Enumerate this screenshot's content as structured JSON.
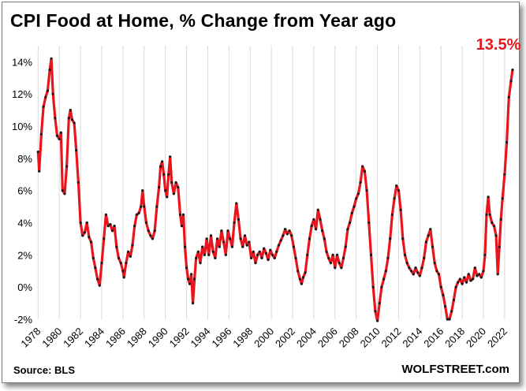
{
  "chart_data": {
    "type": "line",
    "title": "CPI Food at Home, % Change from Year ago",
    "source": "Source: BLS",
    "brand": "WOLFSTREET.com",
    "annotation": "13.5%",
    "xlim": [
      1977.9,
      2022.9
    ],
    "ylim": [
      -2,
      15
    ],
    "y_ticks": [
      -2,
      0,
      2,
      4,
      6,
      8,
      10,
      12,
      14
    ],
    "y_tick_labels": [
      "-2%",
      "0%",
      "2%",
      "4%",
      "6%",
      "8%",
      "10%",
      "12%",
      "14%"
    ],
    "x_ticks": [
      1978,
      1980,
      1982,
      1984,
      1986,
      1988,
      1990,
      1992,
      1994,
      1996,
      1998,
      2000,
      2002,
      2004,
      2006,
      2008,
      2010,
      2012,
      2014,
      2016,
      2018,
      2020,
      2022
    ],
    "x_tick_labels": [
      "1978",
      "1980",
      "1982",
      "1984",
      "1986",
      "1988",
      "1990",
      "1992",
      "1994",
      "1996",
      "1998",
      "2000",
      "2002",
      "2004",
      "2006",
      "2008",
      "2010",
      "2012",
      "2014",
      "2016",
      "2018",
      "2020",
      "2022"
    ],
    "grid": "vertical",
    "line_color": "#e8161c",
    "marker_color": "#1a1a1a",
    "series": [
      {
        "points": [
          [
            1978.0,
            8.4
          ],
          [
            1978.1,
            7.2
          ],
          [
            1978.3,
            9.5
          ],
          [
            1978.5,
            11.2
          ],
          [
            1978.7,
            11.8
          ],
          [
            1978.9,
            12.2
          ],
          [
            1979.1,
            13.5
          ],
          [
            1979.25,
            14.2
          ],
          [
            1979.4,
            12.0
          ],
          [
            1979.6,
            10.5
          ],
          [
            1979.8,
            9.4
          ],
          [
            1980.0,
            9.2
          ],
          [
            1980.15,
            9.6
          ],
          [
            1980.3,
            6.0
          ],
          [
            1980.5,
            5.8
          ],
          [
            1980.7,
            7.5
          ],
          [
            1980.9,
            10.5
          ],
          [
            1981.05,
            11.0
          ],
          [
            1981.2,
            10.4
          ],
          [
            1981.4,
            10.2
          ],
          [
            1981.6,
            8.5
          ],
          [
            1981.8,
            6.5
          ],
          [
            1982.0,
            4.0
          ],
          [
            1982.2,
            3.2
          ],
          [
            1982.4,
            3.4
          ],
          [
            1982.6,
            4.0
          ],
          [
            1982.8,
            3.1
          ],
          [
            1983.0,
            2.8
          ],
          [
            1983.2,
            1.8
          ],
          [
            1983.4,
            1.2
          ],
          [
            1983.6,
            0.5
          ],
          [
            1983.8,
            0.1
          ],
          [
            1984.0,
            1.5
          ],
          [
            1984.2,
            3.0
          ],
          [
            1984.4,
            4.5
          ],
          [
            1984.6,
            3.8
          ],
          [
            1984.8,
            3.9
          ],
          [
            1985.0,
            3.5
          ],
          [
            1985.2,
            3.8
          ],
          [
            1985.4,
            2.5
          ],
          [
            1985.6,
            1.8
          ],
          [
            1985.8,
            1.5
          ],
          [
            1986.0,
            1.0
          ],
          [
            1986.1,
            0.6
          ],
          [
            1986.3,
            1.5
          ],
          [
            1986.5,
            2.2
          ],
          [
            1986.7,
            1.9
          ],
          [
            1986.9,
            2.6
          ],
          [
            1987.1,
            3.8
          ],
          [
            1987.3,
            4.5
          ],
          [
            1987.5,
            4.6
          ],
          [
            1987.7,
            5.0
          ],
          [
            1987.85,
            6.0
          ],
          [
            1988.0,
            5.0
          ],
          [
            1988.2,
            4.0
          ],
          [
            1988.4,
            3.5
          ],
          [
            1988.6,
            3.2
          ],
          [
            1988.8,
            3.0
          ],
          [
            1989.0,
            3.5
          ],
          [
            1989.2,
            5.0
          ],
          [
            1989.4,
            6.2
          ],
          [
            1989.55,
            7.5
          ],
          [
            1989.7,
            7.8
          ],
          [
            1989.85,
            7.0
          ],
          [
            1990.0,
            6.0
          ],
          [
            1990.15,
            5.6
          ],
          [
            1990.3,
            7.0
          ],
          [
            1990.45,
            8.1
          ],
          [
            1990.6,
            6.5
          ],
          [
            1990.8,
            5.8
          ],
          [
            1991.0,
            6.5
          ],
          [
            1991.2,
            6.2
          ],
          [
            1991.4,
            4.5
          ],
          [
            1991.55,
            3.8
          ],
          [
            1991.7,
            4.5
          ],
          [
            1991.85,
            2.5
          ],
          [
            1992.0,
            1.2
          ],
          [
            1992.15,
            0.5
          ],
          [
            1992.3,
            0.2
          ],
          [
            1992.45,
            0.8
          ],
          [
            1992.6,
            -1.0
          ],
          [
            1992.75,
            0.5
          ],
          [
            1992.9,
            1.8
          ],
          [
            1993.1,
            2.2
          ],
          [
            1993.3,
            1.5
          ],
          [
            1993.5,
            2.5
          ],
          [
            1993.7,
            2.0
          ],
          [
            1993.9,
            3.0
          ],
          [
            1994.1,
            2.0
          ],
          [
            1994.3,
            3.2
          ],
          [
            1994.5,
            2.2
          ],
          [
            1994.7,
            1.8
          ],
          [
            1994.9,
            3.0
          ],
          [
            1995.1,
            2.5
          ],
          [
            1995.3,
            3.5
          ],
          [
            1995.5,
            2.8
          ],
          [
            1995.7,
            2.0
          ],
          [
            1995.9,
            3.5
          ],
          [
            1996.1,
            3.0
          ],
          [
            1996.3,
            2.5
          ],
          [
            1996.5,
            4.0
          ],
          [
            1996.7,
            5.2
          ],
          [
            1996.9,
            4.2
          ],
          [
            1997.1,
            3.0
          ],
          [
            1997.3,
            2.5
          ],
          [
            1997.5,
            3.2
          ],
          [
            1997.7,
            2.6
          ],
          [
            1997.9,
            2.8
          ],
          [
            1998.1,
            1.8
          ],
          [
            1998.3,
            2.2
          ],
          [
            1998.5,
            1.5
          ],
          [
            1998.7,
            2.0
          ],
          [
            1998.9,
            2.2
          ],
          [
            1999.1,
            1.8
          ],
          [
            1999.3,
            2.4
          ],
          [
            1999.5,
            2.1
          ],
          [
            1999.7,
            1.7
          ],
          [
            1999.9,
            2.3
          ],
          [
            2000.1,
            2.0
          ],
          [
            2000.3,
            1.8
          ],
          [
            2000.5,
            2.2
          ],
          [
            2000.7,
            2.6
          ],
          [
            2000.9,
            2.9
          ],
          [
            2001.1,
            3.2
          ],
          [
            2001.3,
            3.6
          ],
          [
            2001.5,
            3.3
          ],
          [
            2001.7,
            3.5
          ],
          [
            2001.9,
            3.2
          ],
          [
            2002.1,
            2.5
          ],
          [
            2002.3,
            1.8
          ],
          [
            2002.5,
            1.0
          ],
          [
            2002.7,
            0.5
          ],
          [
            2002.85,
            0.2
          ],
          [
            2003.0,
            0.6
          ],
          [
            2003.2,
            0.9
          ],
          [
            2003.4,
            2.0
          ],
          [
            2003.6,
            3.0
          ],
          [
            2003.8,
            3.8
          ],
          [
            2004.0,
            4.2
          ],
          [
            2004.2,
            3.6
          ],
          [
            2004.4,
            4.8
          ],
          [
            2004.6,
            4.2
          ],
          [
            2004.8,
            3.5
          ],
          [
            2005.0,
            3.0
          ],
          [
            2005.2,
            2.2
          ],
          [
            2005.4,
            1.8
          ],
          [
            2005.6,
            1.5
          ],
          [
            2005.8,
            2.0
          ],
          [
            2006.0,
            1.2
          ],
          [
            2006.2,
            2.0
          ],
          [
            2006.4,
            1.5
          ],
          [
            2006.6,
            1.2
          ],
          [
            2006.8,
            1.8
          ],
          [
            2007.0,
            2.5
          ],
          [
            2007.2,
            3.6
          ],
          [
            2007.4,
            4.0
          ],
          [
            2007.6,
            4.6
          ],
          [
            2007.8,
            5.0
          ],
          [
            2008.0,
            5.5
          ],
          [
            2008.2,
            5.8
          ],
          [
            2008.4,
            6.5
          ],
          [
            2008.6,
            7.5
          ],
          [
            2008.8,
            7.2
          ],
          [
            2009.0,
            6.0
          ],
          [
            2009.2,
            4.0
          ],
          [
            2009.4,
            2.0
          ],
          [
            2009.6,
            0.0
          ],
          [
            2009.8,
            -1.5
          ],
          [
            2010.0,
            -2.1
          ],
          [
            2010.2,
            -1.0
          ],
          [
            2010.4,
            0.0
          ],
          [
            2010.6,
            0.5
          ],
          [
            2010.8,
            1.0
          ],
          [
            2011.0,
            1.8
          ],
          [
            2011.2,
            3.0
          ],
          [
            2011.4,
            4.5
          ],
          [
            2011.6,
            5.5
          ],
          [
            2011.8,
            6.3
          ],
          [
            2012.0,
            6.0
          ],
          [
            2012.2,
            4.8
          ],
          [
            2012.4,
            3.0
          ],
          [
            2012.6,
            2.0
          ],
          [
            2012.8,
            1.5
          ],
          [
            2013.0,
            1.2
          ],
          [
            2013.2,
            1.0
          ],
          [
            2013.4,
            0.8
          ],
          [
            2013.6,
            1.2
          ],
          [
            2013.8,
            0.9
          ],
          [
            2014.0,
            0.7
          ],
          [
            2014.2,
            1.2
          ],
          [
            2014.4,
            1.8
          ],
          [
            2014.6,
            2.8
          ],
          [
            2014.8,
            3.2
          ],
          [
            2015.0,
            3.6
          ],
          [
            2015.2,
            2.5
          ],
          [
            2015.4,
            1.5
          ],
          [
            2015.6,
            1.0
          ],
          [
            2015.8,
            0.8
          ],
          [
            2016.0,
            0.0
          ],
          [
            2016.2,
            -0.5
          ],
          [
            2016.4,
            -1.2
          ],
          [
            2016.6,
            -2.0
          ],
          [
            2016.8,
            -2.0
          ],
          [
            2017.0,
            -1.5
          ],
          [
            2017.2,
            -0.8
          ],
          [
            2017.4,
            0.0
          ],
          [
            2017.6,
            0.3
          ],
          [
            2017.8,
            0.5
          ],
          [
            2018.0,
            0.2
          ],
          [
            2018.2,
            0.6
          ],
          [
            2018.4,
            0.3
          ],
          [
            2018.6,
            0.8
          ],
          [
            2018.8,
            0.4
          ],
          [
            2019.0,
            0.5
          ],
          [
            2019.2,
            1.2
          ],
          [
            2019.4,
            0.7
          ],
          [
            2019.6,
            0.8
          ],
          [
            2019.8,
            0.6
          ],
          [
            2020.0,
            1.0
          ],
          [
            2020.15,
            2.0
          ],
          [
            2020.3,
            4.5
          ],
          [
            2020.45,
            5.6
          ],
          [
            2020.6,
            4.5
          ],
          [
            2020.8,
            4.0
          ],
          [
            2021.0,
            3.8
          ],
          [
            2021.2,
            3.2
          ],
          [
            2021.35,
            0.8
          ],
          [
            2021.5,
            2.5
          ],
          [
            2021.65,
            4.2
          ],
          [
            2021.8,
            5.5
          ],
          [
            2022.0,
            7.0
          ],
          [
            2022.2,
            9.0
          ],
          [
            2022.4,
            11.8
          ],
          [
            2022.6,
            12.8
          ],
          [
            2022.75,
            13.5
          ]
        ]
      }
    ]
  }
}
